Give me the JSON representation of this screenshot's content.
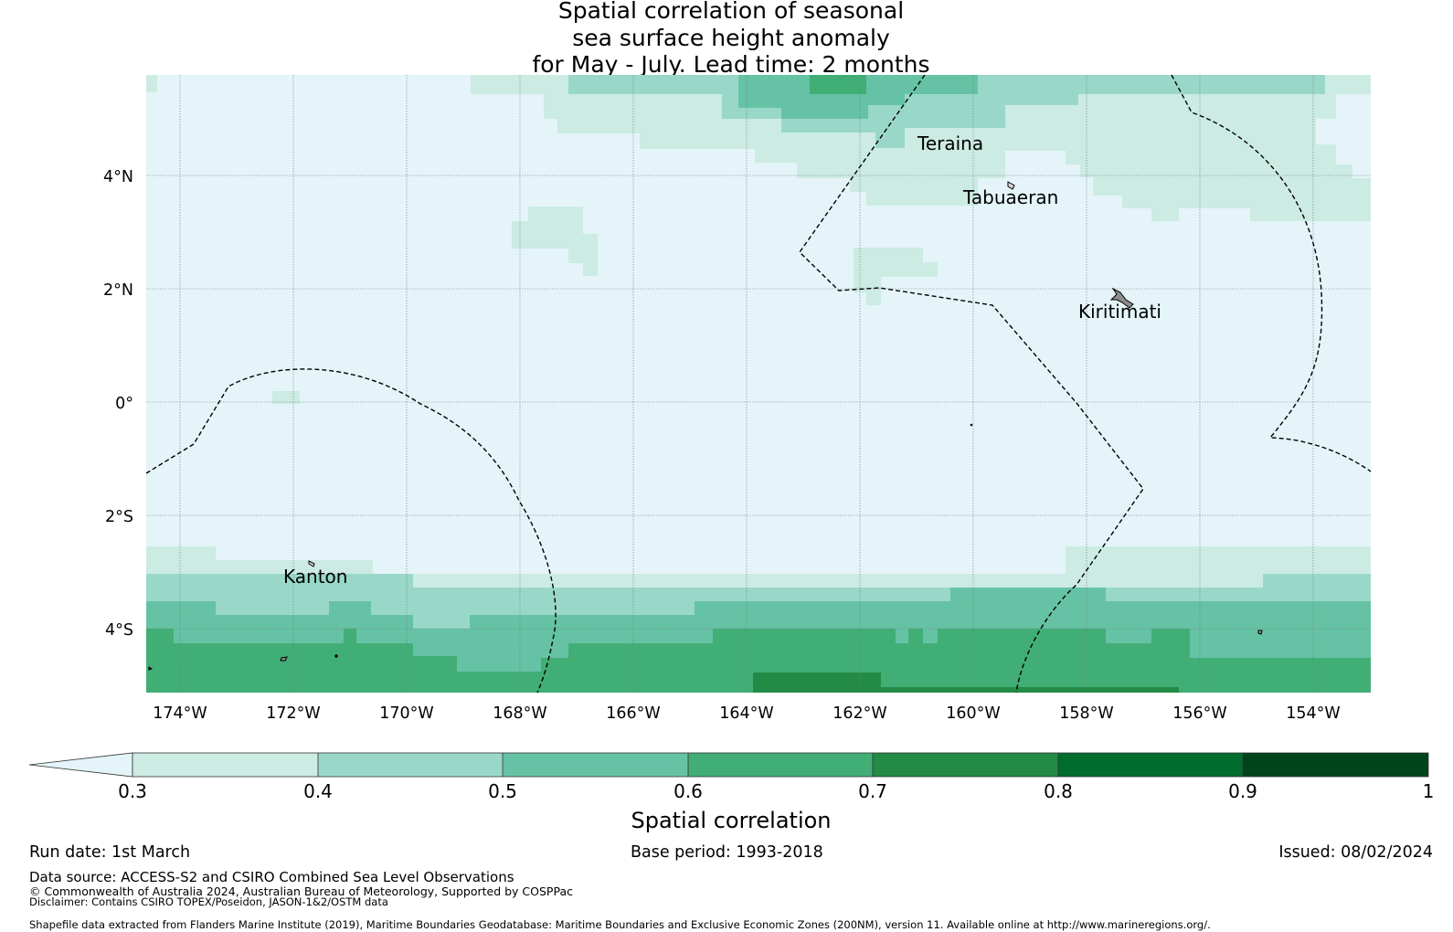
{
  "title": {
    "line1": "Spatial correlation of seasonal",
    "line2": "sea surface height anomaly",
    "line3": "for May - July. Lead time: 2 months"
  },
  "map": {
    "lon_ticks": [
      "174°W",
      "172°W",
      "170°W",
      "168°W",
      "166°W",
      "164°W",
      "162°W",
      "160°W",
      "158°W",
      "156°W",
      "154°W"
    ],
    "lat_ticks": [
      "4°N",
      "2°N",
      "0°",
      "2°S",
      "4°S"
    ],
    "places": [
      "Teraina",
      "Tabuaeran",
      "Kiritimati",
      "Kanton"
    ]
  },
  "colorbar": {
    "ticks": [
      "0.3",
      "0.4",
      "0.5",
      "0.6",
      "0.7",
      "0.8",
      "0.9",
      "1"
    ],
    "colors": [
      "#e4f4f8",
      "#ccebe3",
      "#99d8c8",
      "#66c2a4",
      "#41ae76",
      "#238b45",
      "#006d2c",
      "#00441b"
    ],
    "label": "Spatial correlation"
  },
  "footer": {
    "run_date": "Run date: 1st March",
    "base_period": "Base period: 1993-2018",
    "issued": "Issued: 08/02/2024",
    "data_source": "Data source: ACCESS-S2 and CSIRO Combined Sea Level Observations",
    "copyright": "© Commonwealth of Australia 2024, Australian Bureau of Meteorology, Supported by COSPPac",
    "disclaimer": "Disclaimer: Contains CSIRO TOPEX/Poseidon, JASON-1&2/OSTM data",
    "shapefile": "Shapefile data extracted from Flanders Marine Institute (2019), Maritime Boundaries Geodatabase: Maritime Boundaries and Exclusive Economic Zones (200NM), version 11. Available online at http://www.marineregions.org/."
  }
}
